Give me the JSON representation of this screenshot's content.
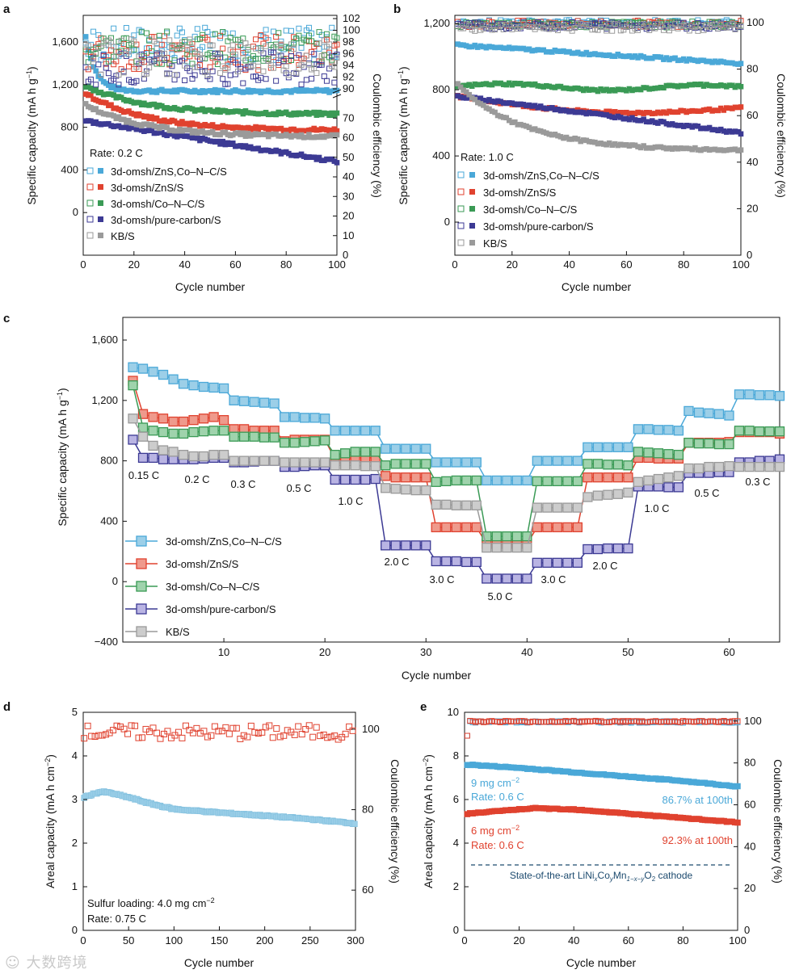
{
  "figure": {
    "watermark": "☺ 大数跨境",
    "colors": {
      "blue": "#4aa8d8",
      "red": "#e0422f",
      "green": "#3a9a55",
      "purple": "#3c3a94",
      "gray": "#9a9a9a",
      "light_blue": "#9ccfe8",
      "light_red": "#ef9a8c",
      "light_green": "#9fd3ac",
      "light_purple": "#b9b4e3",
      "light_gray": "#cccccc",
      "navy": "#1c4a6e"
    }
  },
  "chart_data": [
    {
      "id": "a",
      "panel_label": "a",
      "type": "scatter",
      "title": "",
      "xlabel": "Cycle number",
      "ylabel": "Specific capacity (mA h g",
      "ylabel_sup": "−1",
      "ylabel_tail": ")",
      "y2label": "Coulombic efficiency (%)",
      "xlim": [
        0,
        100
      ],
      "ylim": [
        -400,
        1850
      ],
      "x_ticks": [
        0,
        20,
        40,
        60,
        80,
        100
      ],
      "y_ticks": [
        0,
        400,
        800,
        1200,
        1600
      ],
      "y_tick_labels": [
        "0",
        "400",
        "800",
        "1,200",
        "1,600"
      ],
      "y2_ticks": [
        0,
        10,
        20,
        30,
        40,
        50,
        60,
        70,
        90,
        92,
        94,
        96,
        98,
        100,
        102
      ],
      "rate_label": "Rate: 0.2 C",
      "series": [
        {
          "name": "3d-omsh/ZnS,Co–N–C/S",
          "color_key": "blue",
          "start": 1650,
          "end": 1140,
          "shape": "fast-flat",
          "ce_center": 97.5,
          "ce_spread": 3.0
        },
        {
          "name": "3d-omsh/ZnS/S",
          "color_key": "red",
          "start": 1120,
          "end": 770,
          "shape": "decay",
          "ce_center": 96.2,
          "ce_spread": 3.0
        },
        {
          "name": "3d-omsh/Co–N–C/S",
          "color_key": "green",
          "start": 1190,
          "end": 920,
          "shape": "decay",
          "ce_center": 97.0,
          "ce_spread": 2.8
        },
        {
          "name": "3d-omsh/pure-carbon/S",
          "color_key": "purple",
          "start": 860,
          "end": 480,
          "shape": "linear",
          "ce_center": 93.5,
          "ce_spread": 2.8
        },
        {
          "name": "KB/S",
          "color_key": "gray",
          "start": 1010,
          "end": 710,
          "shape": "decay",
          "ce_center": 95.5,
          "ce_spread": 3.2
        }
      ]
    },
    {
      "id": "b",
      "panel_label": "b",
      "type": "scatter",
      "title": "",
      "xlabel": "Cycle number",
      "ylabel": "Specific capacity (mA h g",
      "ylabel_sup": "−1",
      "ylabel_tail": ")",
      "y2label": "Coulombic efficiency (%)",
      "xlim": [
        0,
        100
      ],
      "ylim": [
        -200,
        1250
      ],
      "x_ticks": [
        0,
        20,
        40,
        60,
        80,
        100
      ],
      "y_ticks": [
        0,
        400,
        800,
        1200
      ],
      "y_tick_labels": [
        "0",
        "400",
        "800",
        "1,200"
      ],
      "y2_ticks": [
        0,
        20,
        40,
        60,
        80,
        100
      ],
      "rate_label": "Rate: 1.0 C",
      "series": [
        {
          "name": "3d-omsh/ZnS,Co–N–C/S",
          "color_key": "blue",
          "start": 1070,
          "end": 960,
          "shape": "linear",
          "ce_center": 100,
          "ce_spread": 1.2
        },
        {
          "name": "3d-omsh/ZnS/S",
          "color_key": "red",
          "start": 760,
          "end": 690,
          "shape": "sag",
          "ce_center": 99.5,
          "ce_spread": 1.4
        },
        {
          "name": "3d-omsh/Co–N–C/S",
          "color_key": "green",
          "start": 820,
          "end": 810,
          "shape": "flat",
          "ce_center": 99.2,
          "ce_spread": 1.3
        },
        {
          "name": "3d-omsh/pure-carbon/S",
          "color_key": "purple",
          "start": 760,
          "end": 540,
          "shape": "linear",
          "ce_center": 98.8,
          "ce_spread": 1.5
        },
        {
          "name": "KB/S",
          "color_key": "gray",
          "start": 830,
          "end": 430,
          "shape": "decay",
          "ce_center": 98.0,
          "ce_spread": 1.6
        }
      ]
    },
    {
      "id": "c",
      "panel_label": "c",
      "type": "line",
      "title": "",
      "xlabel": "Cycle number",
      "ylabel": "Specific capacity (mA h g",
      "ylabel_sup": "−1",
      "ylabel_tail": ")",
      "xlim": [
        0,
        65
      ],
      "ylim": [
        -400,
        1750
      ],
      "x_ticks": [
        10,
        20,
        30,
        40,
        50,
        60
      ],
      "y_ticks": [
        -400,
        0,
        400,
        800,
        1200,
        1600
      ],
      "y_tick_labels": [
        "−400",
        "0",
        "400",
        "800",
        "1,200",
        "1,600"
      ],
      "rate_steps": [
        "0.15 C",
        "0.2 C",
        "0.3 C",
        "0.5 C",
        "1.0 C",
        "2.0 C",
        "3.0 C",
        "5.0 C",
        "3.0 C",
        "2.0 C",
        "1.0 C",
        "0.5 C",
        "0.3 C"
      ],
      "series": [
        {
          "name": "3d-omsh/ZnS,Co–N–C/S",
          "color_key": "blue",
          "values": [
            1420,
            1410,
            1390,
            1370,
            1340,
            1310,
            1300,
            1290,
            1285,
            1280,
            1200,
            1195,
            1190,
            1185,
            1180,
            1090,
            1090,
            1085,
            1085,
            1080,
            1000,
            1000,
            1000,
            1000,
            1000,
            880,
            880,
            880,
            880,
            880,
            790,
            790,
            790,
            790,
            790,
            670,
            670,
            670,
            670,
            670,
            800,
            800,
            800,
            800,
            800,
            890,
            890,
            890,
            890,
            890,
            1010,
            1010,
            1005,
            1005,
            1000,
            1130,
            1120,
            1115,
            1110,
            1100,
            1240,
            1240,
            1235,
            1235,
            1230
          ]
        },
        {
          "name": "3d-omsh/ZnS/S",
          "color_key": "red",
          "values": [
            1330,
            1110,
            1090,
            1080,
            1060,
            1060,
            1070,
            1080,
            1090,
            1070,
            1010,
            1010,
            1000,
            1000,
            1000,
            930,
            940,
            940,
            940,
            940,
            810,
            815,
            820,
            820,
            820,
            700,
            690,
            690,
            690,
            690,
            360,
            360,
            360,
            360,
            360,
            250,
            250,
            250,
            250,
            250,
            360,
            360,
            360,
            360,
            360,
            690,
            690,
            690,
            690,
            690,
            820,
            820,
            815,
            815,
            815,
            920,
            920,
            920,
            920,
            925,
            990,
            990,
            990,
            990,
            980
          ]
        },
        {
          "name": "3d-omsh/Co–N–C/S",
          "color_key": "green",
          "values": [
            1300,
            1020,
            1000,
            990,
            980,
            980,
            990,
            995,
            1000,
            1000,
            960,
            960,
            960,
            955,
            955,
            920,
            920,
            925,
            930,
            935,
            840,
            850,
            860,
            860,
            860,
            770,
            780,
            780,
            780,
            780,
            660,
            665,
            670,
            670,
            670,
            300,
            300,
            300,
            300,
            300,
            665,
            665,
            665,
            665,
            665,
            780,
            780,
            775,
            775,
            770,
            860,
            855,
            850,
            845,
            840,
            920,
            915,
            915,
            910,
            910,
            1000,
            1000,
            995,
            995,
            995
          ]
        },
        {
          "name": "3d-omsh/pure-carbon/S",
          "color_key": "purple",
          "values": [
            940,
            820,
            820,
            810,
            810,
            810,
            810,
            815,
            820,
            820,
            790,
            790,
            795,
            800,
            800,
            760,
            760,
            765,
            770,
            770,
            675,
            675,
            675,
            675,
            680,
            240,
            240,
            240,
            240,
            240,
            135,
            135,
            135,
            130,
            130,
            20,
            20,
            20,
            20,
            20,
            125,
            125,
            125,
            125,
            125,
            215,
            215,
            220,
            220,
            220,
            630,
            630,
            630,
            625,
            625,
            720,
            720,
            720,
            725,
            725,
            790,
            790,
            800,
            800,
            810
          ]
        },
        {
          "name": "KB/S",
          "color_key": "gray",
          "values": [
            1080,
            960,
            900,
            870,
            860,
            840,
            830,
            830,
            840,
            840,
            800,
            800,
            800,
            800,
            800,
            790,
            790,
            790,
            790,
            790,
            770,
            770,
            770,
            765,
            765,
            620,
            615,
            610,
            605,
            605,
            510,
            510,
            505,
            505,
            505,
            225,
            225,
            225,
            225,
            225,
            490,
            490,
            490,
            490,
            490,
            560,
            570,
            575,
            580,
            590,
            660,
            670,
            680,
            690,
            700,
            750,
            750,
            760,
            760,
            765,
            760,
            760,
            760,
            760,
            760
          ]
        }
      ]
    },
    {
      "id": "d",
      "panel_label": "d",
      "type": "scatter",
      "title": "",
      "xlabel": "Cycle number",
      "ylabel": "Areal capacity (mA h cm",
      "ylabel_sup": "−2",
      "ylabel_tail": ")",
      "y2label": "Coulombic efficiency (%)",
      "xlim": [
        0,
        300
      ],
      "ylim": [
        0,
        5
      ],
      "y2lim": [
        50,
        104.2
      ],
      "x_ticks": [
        0,
        50,
        100,
        150,
        200,
        250,
        300
      ],
      "y_ticks": [
        0,
        1,
        2,
        3,
        4,
        5
      ],
      "y2_ticks": [
        60,
        80,
        100
      ],
      "annotation_line1": "Sulfur loading: 4.0 mg cm",
      "annotation_line1_sup": "−2",
      "annotation_line2": "Rate: 0.75 C",
      "series": [
        {
          "name": "Areal capacity",
          "color_key": "light_blue",
          "points": [
            [
              1,
              3.05
            ],
            [
              10,
              3.12
            ],
            [
              20,
              3.18
            ],
            [
              30,
              3.15
            ],
            [
              50,
              3.05
            ],
            [
              75,
              2.9
            ],
            [
              100,
              2.78
            ],
            [
              150,
              2.7
            ],
            [
              200,
              2.63
            ],
            [
              250,
              2.55
            ],
            [
              300,
              2.45
            ]
          ]
        },
        {
          "name": "Coulombic efficiency",
          "color_key": "red",
          "ce_center": 99.2,
          "ce_spread": 1.8
        }
      ]
    },
    {
      "id": "e",
      "panel_label": "e",
      "type": "scatter",
      "title": "",
      "xlabel": "Cycle number",
      "ylabel": "Areal capacity (mA h cm",
      "ylabel_sup": "−2",
      "ylabel_tail": ")",
      "y2label": "Coulombic efficiency (%)",
      "xlim": [
        0,
        100
      ],
      "ylim": [
        0,
        10
      ],
      "y2lim": [
        0,
        104.2
      ],
      "x_ticks": [
        0,
        20,
        40,
        60,
        80,
        100
      ],
      "y_ticks": [
        0,
        2,
        4,
        6,
        8,
        10
      ],
      "y2_ticks": [
        0,
        20,
        40,
        60,
        80,
        100
      ],
      "reference_line": {
        "y": 3.0,
        "label": "State-of-the-art LiNi",
        "label_x": "x",
        "label_co": "Co",
        "label_y": "y",
        "label_mn": "Mn",
        "label_mnsub": "1−x−y",
        "label_o": "O",
        "label_osub": "2",
        "label_tail": " cathode"
      },
      "series": [
        {
          "name": "9 mg cm−2",
          "loading_label": "9 mg cm",
          "loading_sup": "−2",
          "rate_label": "Rate: 0.6 C",
          "retention_label": "86.7% at 100th",
          "color_key": "blue",
          "points": [
            [
              1,
              7.6
            ],
            [
              20,
              7.45
            ],
            [
              40,
              7.25
            ],
            [
              60,
              7.05
            ],
            [
              80,
              6.85
            ],
            [
              100,
              6.6
            ]
          ],
          "ce_center": 99.6
        },
        {
          "name": "6 mg cm−2",
          "loading_label": "6 mg cm",
          "loading_sup": "−2",
          "rate_label": "Rate: 0.6 C",
          "retention_label": "92.3% at 100th",
          "color_key": "red",
          "points": [
            [
              1,
              5.35
            ],
            [
              25,
              5.6
            ],
            [
              40,
              5.55
            ],
            [
              60,
              5.35
            ],
            [
              80,
              5.15
            ],
            [
              100,
              4.95
            ]
          ],
          "ce_center": 99.8
        }
      ]
    }
  ]
}
